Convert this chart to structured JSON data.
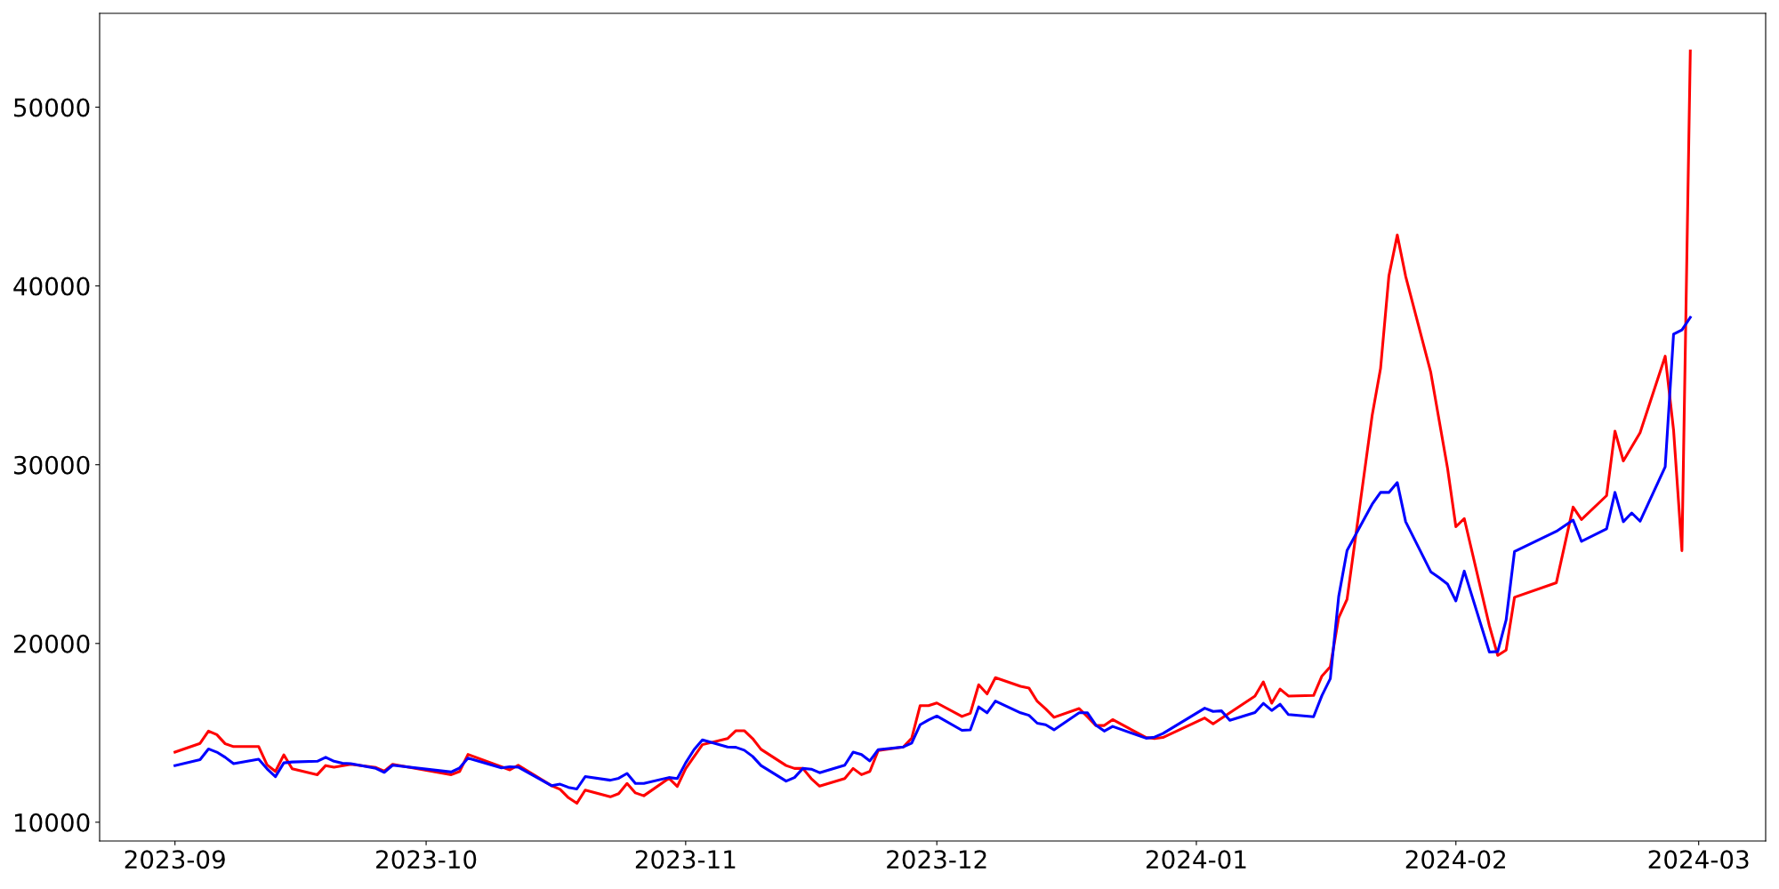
{
  "chart_data": {
    "type": "line",
    "xlim": [
      "2023-08-23",
      "2024-03-09"
    ],
    "ylim": [
      8950,
      55250
    ],
    "xticks": [
      "2023-09",
      "2023-10",
      "2023-11",
      "2023-12",
      "2024-01",
      "2024-02",
      "2024-03"
    ],
    "yticks": [
      10000,
      20000,
      30000,
      40000,
      50000
    ],
    "grid": false,
    "marker": "none",
    "line_style": "solid",
    "series": [
      {
        "color": "#ff0000",
        "x": [
          "2023-09-01",
          "2023-09-04",
          "2023-09-05",
          "2023-09-06",
          "2023-09-07",
          "2023-09-08",
          "2023-09-11",
          "2023-09-12",
          "2023-09-13",
          "2023-09-14",
          "2023-09-15",
          "2023-09-18",
          "2023-09-19",
          "2023-09-20",
          "2023-09-22",
          "2023-09-25",
          "2023-09-26",
          "2023-09-27",
          "2023-10-04",
          "2023-10-05",
          "2023-10-06",
          "2023-10-11",
          "2023-10-12",
          "2023-10-16",
          "2023-10-17",
          "2023-10-18",
          "2023-10-19",
          "2023-10-20",
          "2023-10-23",
          "2023-10-24",
          "2023-10-25",
          "2023-10-26",
          "2023-10-27",
          "2023-10-30",
          "2023-10-31",
          "2023-11-01",
          "2023-11-03",
          "2023-11-06",
          "2023-11-07",
          "2023-11-08",
          "2023-11-09",
          "2023-11-10",
          "2023-11-13",
          "2023-11-14",
          "2023-11-15",
          "2023-11-16",
          "2023-11-17",
          "2023-11-20",
          "2023-11-21",
          "2023-11-22",
          "2023-11-23",
          "2023-11-24",
          "2023-11-27",
          "2023-11-28",
          "2023-11-29",
          "2023-11-30",
          "2023-12-01",
          "2023-12-04",
          "2023-12-05",
          "2023-12-06",
          "2023-12-07",
          "2023-12-08",
          "2023-12-11",
          "2023-12-12",
          "2023-12-13",
          "2023-12-14",
          "2023-12-15",
          "2023-12-18",
          "2023-12-19",
          "2023-12-20",
          "2023-12-21",
          "2023-12-22",
          "2023-12-26",
          "2023-12-27",
          "2023-12-28",
          "2024-01-02",
          "2024-01-03",
          "2024-01-08",
          "2024-01-09",
          "2024-01-10",
          "2024-01-11",
          "2024-01-12",
          "2024-01-15",
          "2024-01-16",
          "2024-01-17",
          "2024-01-18",
          "2024-01-19",
          "2024-01-22",
          "2024-01-23",
          "2024-01-24",
          "2024-01-25",
          "2024-01-26",
          "2024-01-29",
          "2024-01-31",
          "2024-02-01",
          "2024-02-02",
          "2024-02-05",
          "2024-02-06",
          "2024-02-07",
          "2024-02-08",
          "2024-02-13",
          "2024-02-15",
          "2024-02-16",
          "2024-02-19",
          "2024-02-20",
          "2024-02-21",
          "2024-02-23",
          "2024-02-26",
          "2024-02-27",
          "2024-02-28",
          "2024-02-29"
        ],
        "values": [
          13920,
          14410,
          15100,
          14900,
          14390,
          14230,
          14230,
          13210,
          12840,
          13770,
          12990,
          12660,
          13170,
          13080,
          13240,
          13060,
          12860,
          13240,
          12660,
          12840,
          13790,
          12930,
          13190,
          12040,
          11840,
          11370,
          11060,
          11800,
          11420,
          11600,
          12170,
          11640,
          11480,
          12460,
          12000,
          13000,
          14340,
          14680,
          15120,
          15120,
          14680,
          14080,
          13170,
          13010,
          13010,
          12440,
          12020,
          12440,
          13010,
          12660,
          12840,
          14010,
          14210,
          14700,
          16520,
          16520,
          16670,
          15920,
          16090,
          17690,
          17180,
          18090,
          17600,
          17510,
          16760,
          16340,
          15870,
          16360,
          15890,
          15410,
          15410,
          15740,
          14740,
          14680,
          14740,
          15830,
          15500,
          17060,
          17850,
          16660,
          17450,
          17060,
          17090,
          18180,
          18700,
          21440,
          22470,
          32760,
          35380,
          40570,
          42850,
          40540,
          35160,
          29810,
          26530,
          26990,
          20990,
          19330,
          19630,
          22580,
          23400,
          27630,
          26930,
          28270,
          31880,
          30210,
          31790,
          36070,
          31940,
          25190,
          53150
        ]
      },
      {
        "color": "#0000ff",
        "x": [
          "2023-09-01",
          "2023-09-04",
          "2023-09-05",
          "2023-09-06",
          "2023-09-07",
          "2023-09-08",
          "2023-09-11",
          "2023-09-12",
          "2023-09-13",
          "2023-09-14",
          "2023-09-15",
          "2023-09-18",
          "2023-09-19",
          "2023-09-20",
          "2023-09-21",
          "2023-09-22",
          "2023-09-25",
          "2023-09-26",
          "2023-09-27",
          "2023-10-04",
          "2023-10-05",
          "2023-10-06",
          "2023-10-10",
          "2023-10-11",
          "2023-10-12",
          "2023-10-16",
          "2023-10-17",
          "2023-10-18",
          "2023-10-19",
          "2023-10-20",
          "2023-10-23",
          "2023-10-24",
          "2023-10-25",
          "2023-10-26",
          "2023-10-27",
          "2023-10-30",
          "2023-10-31",
          "2023-11-01",
          "2023-11-02",
          "2023-11-03",
          "2023-11-06",
          "2023-11-07",
          "2023-11-08",
          "2023-11-09",
          "2023-11-10",
          "2023-11-13",
          "2023-11-14",
          "2023-11-15",
          "2023-11-16",
          "2023-11-17",
          "2023-11-20",
          "2023-11-21",
          "2023-11-22",
          "2023-11-23",
          "2023-11-24",
          "2023-11-27",
          "2023-11-28",
          "2023-11-29",
          "2023-11-30",
          "2023-12-01",
          "2023-12-04",
          "2023-12-05",
          "2023-12-06",
          "2023-12-07",
          "2023-12-08",
          "2023-12-11",
          "2023-12-12",
          "2023-12-13",
          "2023-12-14",
          "2023-12-15",
          "2023-12-18",
          "2023-12-19",
          "2023-12-20",
          "2023-12-21",
          "2023-12-22",
          "2023-12-26",
          "2023-12-27",
          "2023-12-28",
          "2024-01-02",
          "2024-01-03",
          "2024-01-04",
          "2024-01-05",
          "2024-01-08",
          "2024-01-09",
          "2024-01-10",
          "2024-01-11",
          "2024-01-12",
          "2024-01-15",
          "2024-01-16",
          "2024-01-17",
          "2024-01-18",
          "2024-01-19",
          "2024-01-22",
          "2024-01-23",
          "2024-01-24",
          "2024-01-25",
          "2024-01-26",
          "2024-01-29",
          "2024-01-30",
          "2024-01-31",
          "2024-02-01",
          "2024-02-02",
          "2024-02-05",
          "2024-02-06",
          "2024-02-07",
          "2024-02-08",
          "2024-02-13",
          "2024-02-15",
          "2024-02-16",
          "2024-02-19",
          "2024-02-20",
          "2024-02-21",
          "2024-02-22",
          "2024-02-23",
          "2024-02-26",
          "2024-02-27",
          "2024-02-28",
          "2024-02-29"
        ],
        "values": [
          13170,
          13500,
          14100,
          13920,
          13630,
          13280,
          13520,
          12990,
          12550,
          13320,
          13370,
          13410,
          13630,
          13410,
          13300,
          13280,
          13010,
          12790,
          13190,
          12810,
          13040,
          13590,
          13040,
          13100,
          13080,
          12040,
          12130,
          11950,
          11860,
          12550,
          12350,
          12460,
          12730,
          12170,
          12170,
          12500,
          12440,
          13320,
          14060,
          14610,
          14210,
          14190,
          14030,
          13680,
          13170,
          12300,
          12500,
          13010,
          12970,
          12770,
          13190,
          13920,
          13790,
          13430,
          14060,
          14210,
          14430,
          15450,
          15720,
          15940,
          15140,
          15170,
          16450,
          16120,
          16780,
          16120,
          15980,
          15540,
          15450,
          15170,
          16120,
          16120,
          15430,
          15100,
          15360,
          14700,
          14760,
          14960,
          16380,
          16200,
          16230,
          15700,
          16140,
          16650,
          16250,
          16600,
          16020,
          15900,
          17090,
          18030,
          22620,
          25200,
          27790,
          28450,
          28450,
          29000,
          26810,
          24010,
          23680,
          23320,
          22380,
          24050,
          19520,
          19550,
          21310,
          25140,
          26270,
          26900,
          25710,
          26410,
          28450,
          26810,
          27300,
          26840,
          29880,
          37300,
          37540,
          38240
        ]
      }
    ]
  }
}
